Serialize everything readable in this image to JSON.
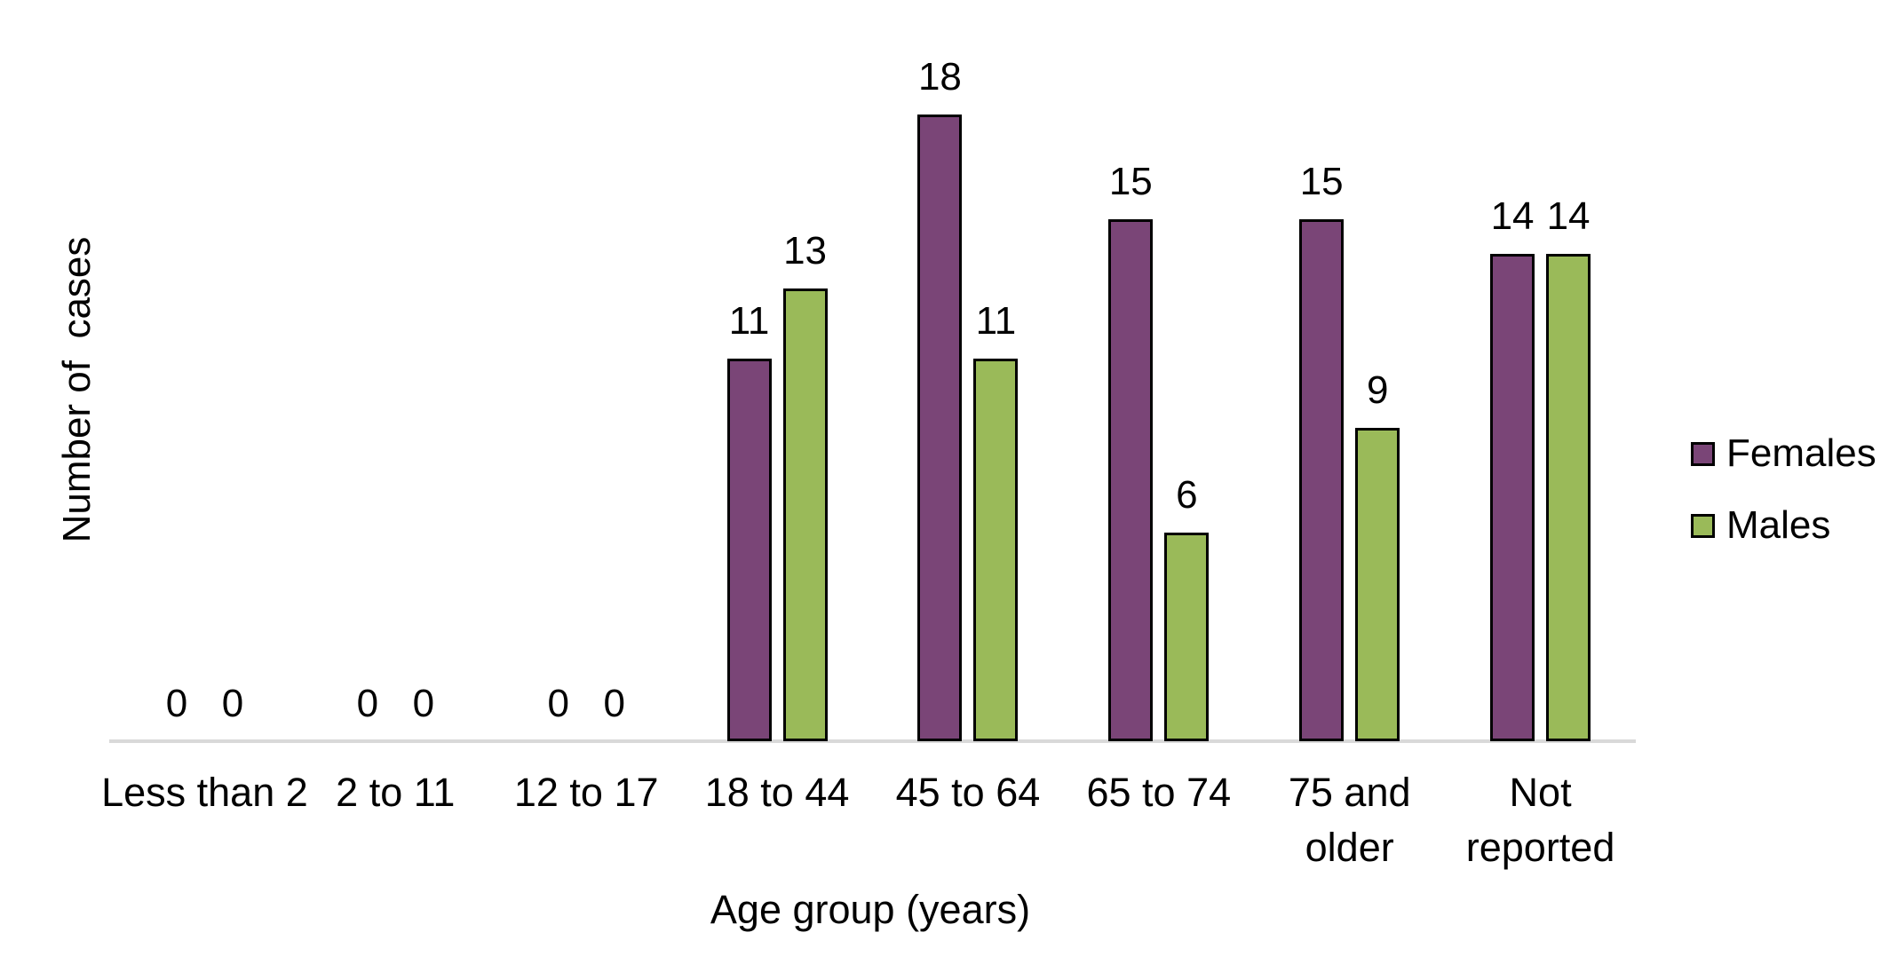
{
  "chart_data": {
    "type": "bar",
    "title": "",
    "xlabel": "Age group (years)",
    "ylabel": "Number of  cases",
    "categories": [
      "Less than 2",
      "2 to 11",
      "12 to 17",
      "18 to 44",
      "45 to 64",
      "65 to 74",
      "75 and\nolder",
      "Not\nreported"
    ],
    "series": [
      {
        "name": "Females",
        "color": "#7A4577",
        "values": [
          0,
          0,
          0,
          11,
          18,
          15,
          15,
          14
        ]
      },
      {
        "name": "Males",
        "color": "#9ABA59",
        "values": [
          0,
          0,
          0,
          13,
          11,
          6,
          9,
          14
        ]
      }
    ],
    "ylim": [
      0,
      18
    ],
    "grid": false,
    "y_axis_ticks_visible": false,
    "data_labels": true,
    "legend_position": "right",
    "colors": {
      "axis_line": "#D9D9D9",
      "bar_outline": "#000000",
      "text": "#000000"
    }
  }
}
